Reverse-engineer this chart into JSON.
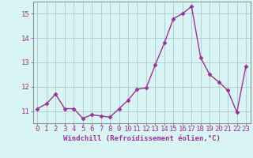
{
  "x": [
    0,
    1,
    2,
    3,
    4,
    5,
    6,
    7,
    8,
    9,
    10,
    11,
    12,
    13,
    14,
    15,
    16,
    17,
    18,
    19,
    20,
    21,
    22,
    23
  ],
  "y": [
    11.1,
    11.3,
    11.7,
    11.1,
    11.1,
    10.7,
    10.85,
    10.8,
    10.75,
    11.1,
    11.45,
    11.9,
    11.95,
    12.9,
    13.8,
    14.8,
    15.0,
    15.3,
    13.2,
    12.5,
    12.2,
    11.85,
    10.95,
    12.85
  ],
  "line_color": "#993399",
  "marker": "D",
  "marker_size": 2.5,
  "bg_color": "#d8f4f4",
  "grid_color": "#aec8c8",
  "xlabel": "Windchill (Refroidissement éolien,°C)",
  "ylabel": "",
  "ylim": [
    10.5,
    15.5
  ],
  "xlim": [
    -0.5,
    23.5
  ],
  "yticks": [
    11,
    12,
    13,
    14,
    15
  ],
  "xticks": [
    0,
    1,
    2,
    3,
    4,
    5,
    6,
    7,
    8,
    9,
    10,
    11,
    12,
    13,
    14,
    15,
    16,
    17,
    18,
    19,
    20,
    21,
    22,
    23
  ],
  "tick_color": "#993399",
  "label_color": "#993399",
  "font_size": 6.5,
  "xlabel_fontsize": 6.5,
  "linewidth": 1.0,
  "spine_color": "#777777"
}
